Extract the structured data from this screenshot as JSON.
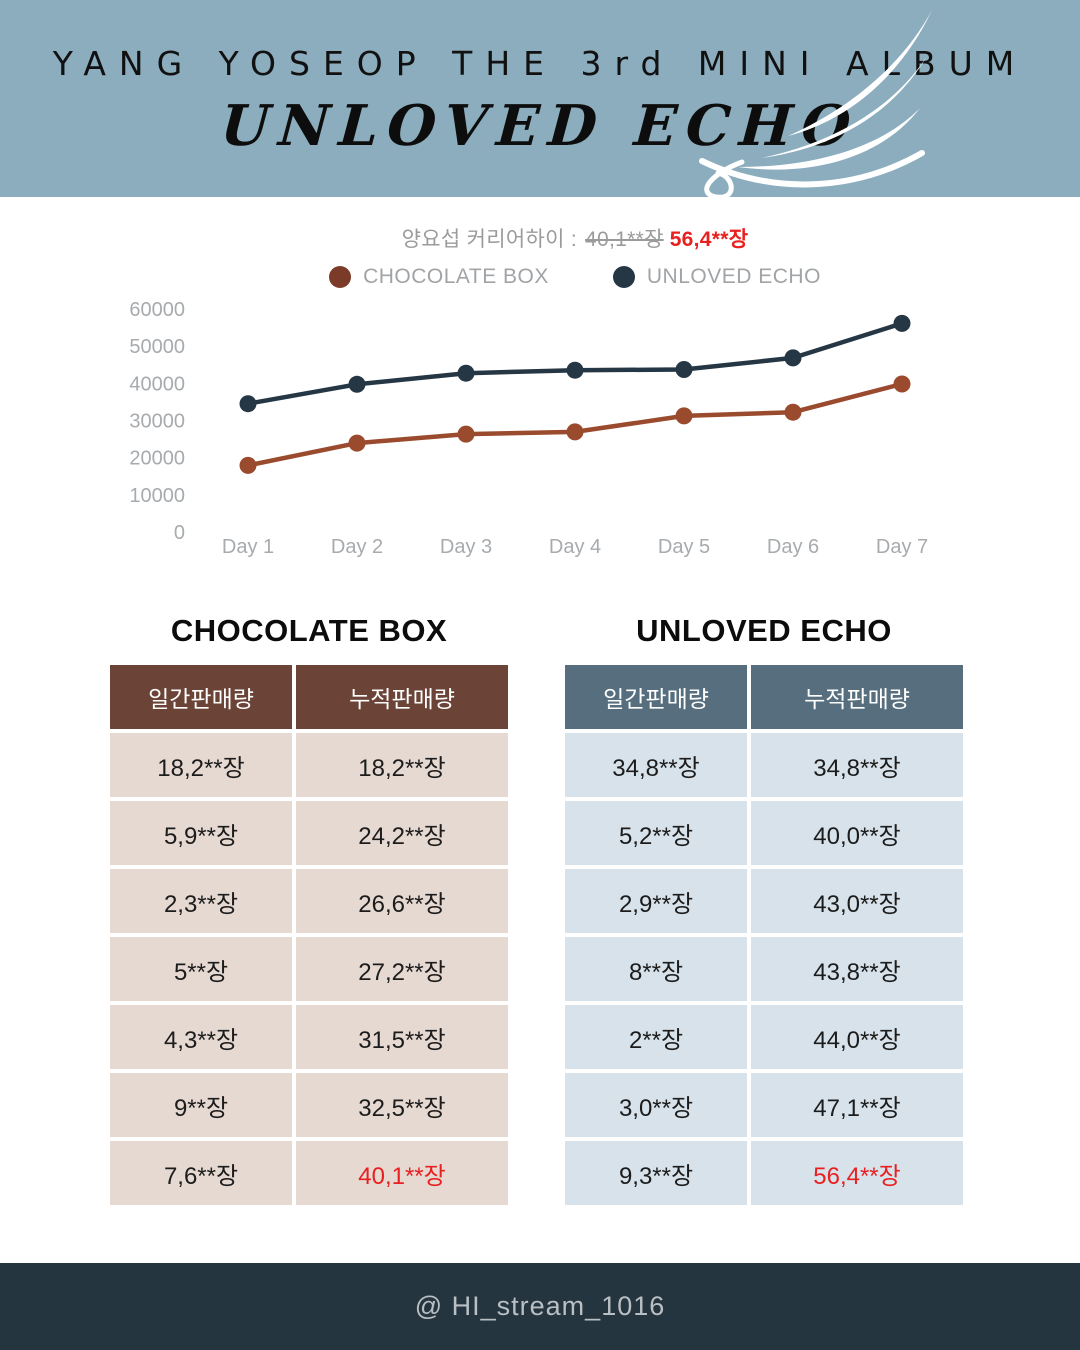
{
  "hero": {
    "title_line": "YANG YOSEOP THE 3rd MINI ALBUM",
    "album_title": "UNLOVED ECHO",
    "wing_icon": "feather-wing-icon"
  },
  "career_high": {
    "label": "양요섭 커리어하이 :",
    "previous_record": "40,1**장",
    "new_record": "56,4**장"
  },
  "legend": {
    "items": [
      {
        "label": "CHOCOLATE BOX",
        "color": "#7b3b28"
      },
      {
        "label": "UNLOVED ECHO",
        "color": "#253745"
      }
    ]
  },
  "chart_data": {
    "type": "line",
    "x": [
      "Day 1",
      "Day 2",
      "Day 3",
      "Day 4",
      "Day 5",
      "Day 6",
      "Day 7"
    ],
    "series": [
      {
        "name": "CHOCOLATE BOX",
        "color": "#9a4a2d",
        "values": [
          18200,
          24200,
          26600,
          27200,
          31500,
          32500,
          40100
        ]
      },
      {
        "name": "UNLOVED ECHO",
        "color": "#253745",
        "values": [
          34800,
          40000,
          43000,
          43800,
          44000,
          47100,
          56400
        ]
      }
    ],
    "ylim": [
      0,
      60000
    ],
    "yticks": [
      0,
      10000,
      20000,
      30000,
      40000,
      50000,
      60000
    ],
    "grid": false,
    "legend_position": "top",
    "marker": "circle"
  },
  "tables": [
    {
      "title": "CHOCOLATE BOX",
      "header_bg": "#6b4337",
      "row_bg": "#e6d9d2",
      "columns": [
        "일간판매량",
        "누적판매량"
      ],
      "rows": [
        [
          "18,2**장",
          "18,2**장"
        ],
        [
          "5,9**장",
          "24,2**장"
        ],
        [
          "2,3**장",
          "26,6**장"
        ],
        [
          "5**장",
          "27,2**장"
        ],
        [
          "4,3**장",
          "31,5**장"
        ],
        [
          "9**장",
          "32,5**장"
        ],
        [
          "7,6**장",
          "40,1**장"
        ]
      ],
      "highlight": {
        "row": 6,
        "col": 1,
        "color": "#e82020"
      }
    },
    {
      "title": "UNLOVED ECHO",
      "header_bg": "#566e7d",
      "row_bg": "#d7e2ea",
      "columns": [
        "일간판매량",
        "누적판매량"
      ],
      "rows": [
        [
          "34,8**장",
          "34,8**장"
        ],
        [
          "5,2**장",
          "40,0**장"
        ],
        [
          "2,9**장",
          "43,0**장"
        ],
        [
          "8**장",
          "43,8**장"
        ],
        [
          "2**장",
          "44,0**장"
        ],
        [
          "3,0**장",
          "47,1**장"
        ],
        [
          "9,3**장",
          "56,4**장"
        ]
      ],
      "highlight": {
        "row": 6,
        "col": 1,
        "color": "#e82020"
      }
    }
  ],
  "footer": {
    "handle": "@ HI_stream_1016"
  },
  "colors": {
    "hero_bg": "#8badbd",
    "footer_bg": "#24353f",
    "accent_red": "#e82020",
    "axis_text": "#a7abae"
  }
}
